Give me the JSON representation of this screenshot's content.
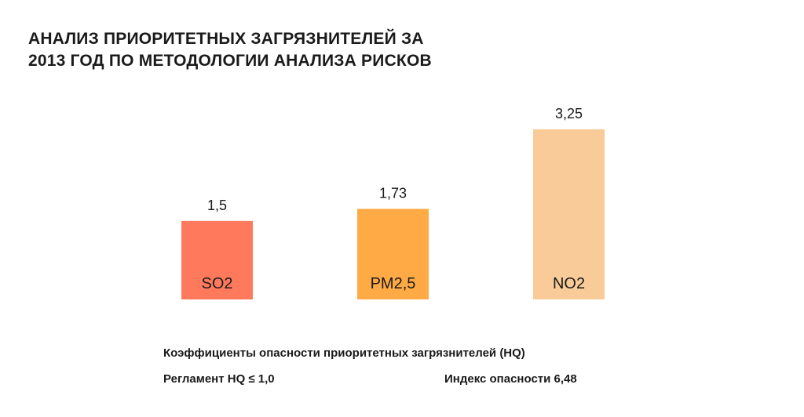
{
  "title_lines": [
    "АНАЛИЗ ПРИОРИТЕТНЫХ ЗАГРЯЗНИТЕЛЕЙ ЗА",
    "2013 ГОД ПО МЕТОДОЛОГИИ АНАЛИЗА РИСКОВ"
  ],
  "chart_data": {
    "type": "bar",
    "categories": [
      "SO2",
      "PM2,5",
      "NO2"
    ],
    "values": [
      1.5,
      1.73,
      3.25
    ],
    "value_labels": [
      "1,5",
      "1,73",
      "3,25"
    ],
    "colors": [
      "#FF7A5C",
      "#FFAA45",
      "#F9CB98"
    ],
    "title": "АНАЛИЗ ПРИОРИТЕТНЫХ ЗАГРЯЗНИТЕЛЕЙ ЗА 2013 ГОД ПО МЕТОДОЛОГИИ АНАЛИЗА РИСКОВ",
    "xlabel": "",
    "ylabel": "",
    "ylim": [
      0,
      3.25
    ],
    "grid": false,
    "legend": "none"
  },
  "footer": {
    "caption": "Коэффициенты опасности приоритетных загрязнителей (HQ)",
    "regulation": "Регламент HQ ≤ 1,0",
    "index": "Индекс опасности 6,48"
  }
}
